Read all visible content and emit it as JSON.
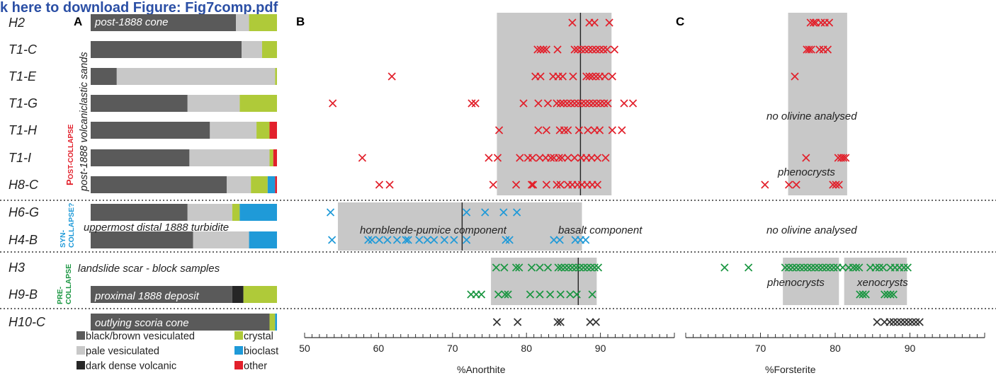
{
  "header": {
    "download_link": "k here to download Figure: Fig7comp.pdf"
  },
  "panels": {
    "a": "A",
    "b": "B",
    "c": "C"
  },
  "samples": [
    "H2",
    "T1-C",
    "T1-E",
    "T1-G",
    "T1-H",
    "T1-I",
    "H8-C",
    "H6-G",
    "H4-B",
    "H3",
    "H9-B",
    "H10-C"
  ],
  "groups": {
    "post": [
      "P",
      "OST",
      "-COLLAPSE"
    ],
    "syn": [
      "SYN-",
      "COLLAPSE?"
    ],
    "pre": [
      "PRE-",
      "COLLAPSE"
    ]
  },
  "annotations": {
    "post1888_sands": "post-1888 volcaniclastic sands",
    "post1888_cone": "post-1888 cone",
    "turbidite": "uppermost distal 1888 turbidite",
    "landslide": "landslide scar - block samples",
    "proximal": "proximal 1888 deposit",
    "outlying": "outlying scoria cone",
    "hornblende": "hornblende-pumice component",
    "basalt": "basalt component",
    "no_olivine": "no olivine analysed",
    "phenocrysts": "phenocrysts",
    "xenocrysts": "xenocrysts"
  },
  "legend": [
    {
      "label": "black/brown vesiculated",
      "color": "#5a5a5a"
    },
    {
      "label": "pale vesiculated",
      "color": "#c8c8c8"
    },
    {
      "label": "dark dense volcanic",
      "color": "#262626"
    },
    {
      "label": "crystal",
      "color": "#afca39"
    },
    {
      "label": "bioclast",
      "color": "#1f9ad8"
    },
    {
      "label": "other",
      "color": "#e2202b"
    }
  ],
  "colors": {
    "post": "#e2202b",
    "syn": "#1f9ad8",
    "pre": "#1a9641",
    "other": "#333333",
    "shade": "#c8c8c8"
  },
  "chart_data": [
    {
      "type": "bar",
      "panel": "A",
      "categories": [
        "H2",
        "T1-C",
        "T1-E",
        "T1-G",
        "T1-H",
        "T1-I",
        "H8-C",
        "H6-G",
        "H4-B",
        "H9-B",
        "H10-C"
      ],
      "series": [
        {
          "name": "black/brown vesiculated",
          "values": [
            78,
            81,
            14,
            52,
            64,
            53,
            73,
            52,
            55,
            76,
            96
          ]
        },
        {
          "name": "pale vesiculated",
          "values": [
            7,
            11,
            85,
            28,
            25,
            43,
            13,
            24,
            30,
            0,
            0
          ]
        },
        {
          "name": "dark dense volcanic",
          "values": [
            0,
            0,
            0,
            0,
            0,
            0,
            0,
            0,
            0,
            6,
            0
          ]
        },
        {
          "name": "crystal",
          "values": [
            15,
            8,
            1,
            20,
            7,
            2,
            9,
            4,
            0,
            18,
            3
          ]
        },
        {
          "name": "bioclast",
          "values": [
            0,
            0,
            0,
            0,
            0,
            0,
            4,
            20,
            15,
            0,
            1
          ]
        },
        {
          "name": "other",
          "values": [
            0,
            0,
            0,
            0,
            4,
            2,
            1,
            0,
            0,
            0,
            0
          ]
        }
      ],
      "xlim": [
        0,
        100
      ]
    },
    {
      "type": "scatter",
      "panel": "B",
      "xlabel": "%Anorthite",
      "xlim": [
        50,
        100
      ],
      "xticks": [
        50,
        60,
        70,
        80,
        90
      ],
      "shaded": [
        {
          "x0": 76,
          "x1": 91.5,
          "rows": [
            "H2",
            "H8-C"
          ],
          "median": 87.3
        },
        {
          "x0": 54.5,
          "x1": 87.5,
          "rows": [
            "H6-G",
            "H4-B"
          ],
          "median": 71.3
        },
        {
          "x0": 75.2,
          "x1": 89.5,
          "rows": [
            "H3",
            "H9-B"
          ],
          "median": 87.0
        }
      ],
      "series": [
        {
          "sample": "H2",
          "group": "post",
          "x": [
            86.2,
            88.5,
            89.2,
            91.2
          ]
        },
        {
          "sample": "T1-C",
          "group": "post",
          "x": [
            81.5,
            81.9,
            82.3,
            82.7,
            84.2,
            86.5,
            86.9,
            87.4,
            87.9,
            88.4,
            88.9,
            89.4,
            89.9,
            90.4,
            90.9,
            91.9
          ]
        },
        {
          "sample": "T1-E",
          "group": "post",
          "x": [
            61.8,
            81.2,
            81.9,
            83.6,
            84.3,
            84.9,
            86.3,
            88.1,
            88.5,
            88.9,
            89.4,
            89.9,
            90.6,
            91.6
          ]
        },
        {
          "sample": "T1-G",
          "group": "post",
          "x": [
            53.8,
            72.6,
            73.1,
            79.6,
            81.6,
            82.9,
            84.1,
            84.6,
            85.0,
            85.5,
            86.0,
            86.5,
            87.0,
            87.5,
            88.0,
            88.5,
            89.0,
            89.5,
            90.0,
            90.5,
            91.0,
            93.2,
            94.4
          ]
        },
        {
          "sample": "T1-H",
          "group": "post",
          "x": [
            76.3,
            81.6,
            82.7,
            84.5,
            85.1,
            85.6,
            87.1,
            88.3,
            89.2,
            89.9,
            91.6,
            92.9
          ]
        },
        {
          "sample": "T1-I",
          "group": "post",
          "x": [
            57.8,
            74.9,
            76.1,
            79.1,
            80.2,
            80.8,
            81.8,
            82.6,
            83.3,
            83.7,
            84.4,
            84.8,
            85.6,
            86.5,
            87.4,
            88.1,
            88.8,
            89.6,
            90.7
          ]
        },
        {
          "sample": "H8-C",
          "group": "post",
          "x": [
            60.1,
            61.5,
            75.5,
            78.6,
            80.7,
            80.9,
            82.7,
            84.1,
            84.6,
            85.6,
            86.2,
            86.9,
            87.5,
            88.2,
            88.9,
            89.6
          ]
        },
        {
          "sample": "H6-G",
          "group": "syn",
          "x": [
            53.5,
            71.9,
            74.4,
            76.9,
            78.7
          ]
        },
        {
          "sample": "H4-B",
          "group": "syn",
          "x": [
            53.7,
            58.6,
            59.1,
            60.1,
            61.2,
            62.5,
            63.7,
            64.0,
            65.5,
            66.6,
            67.5,
            68.9,
            70.2,
            71.9,
            77.2,
            77.7,
            83.7,
            84.5,
            86.6,
            87.3,
            88.0
          ]
        },
        {
          "sample": "H3",
          "group": "pre",
          "x": [
            75.9,
            77.0,
            78.6,
            79.0,
            80.7,
            81.8,
            82.9,
            84.3,
            84.7,
            85.2,
            85.7,
            86.2,
            86.7,
            87.2,
            87.7,
            88.2,
            88.7,
            89.2,
            89.7
          ]
        },
        {
          "sample": "H9-B",
          "group": "pre",
          "x": [
            72.5,
            73.2,
            73.9,
            76.2,
            77.1,
            77.5,
            80.5,
            81.8,
            83.2,
            84.6,
            85.9,
            86.8,
            88.9
          ]
        },
        {
          "sample": "H10-C",
          "group": "other",
          "x": [
            76.0,
            78.8,
            84.2,
            84.6,
            88.6,
            89.4
          ]
        }
      ]
    },
    {
      "type": "scatter",
      "panel": "C",
      "xlabel": "%Forsterite",
      "xlim": [
        60,
        100
      ],
      "xticks": [
        70,
        80,
        90
      ],
      "shaded": [
        {
          "x0": 73.7,
          "x1": 81.6,
          "rows": [
            "H2",
            "H8-C"
          ]
        },
        {
          "x0": 73.0,
          "x1": 80.5,
          "rows": [
            "H3",
            "H9-B"
          ]
        },
        {
          "x0": 81.2,
          "x1": 89.6,
          "rows": [
            "H3",
            "H9-B"
          ]
        }
      ],
      "series": [
        {
          "sample": "H2",
          "group": "post",
          "x": [
            76.7,
            77.1,
            77.4,
            78.1,
            78.6,
            79.2
          ]
        },
        {
          "sample": "T1-C",
          "group": "post",
          "x": [
            76.2,
            76.5,
            76.8,
            77.9,
            78.4,
            79.0
          ]
        },
        {
          "sample": "T1-E",
          "group": "post",
          "x": [
            74.6
          ]
        },
        {
          "sample": "T1-I",
          "group": "post",
          "x": [
            76.1,
            80.4,
            80.8,
            81.1,
            81.4
          ]
        },
        {
          "sample": "H8-C",
          "group": "post",
          "x": [
            70.6,
            73.8,
            74.8,
            79.7,
            80.1,
            80.5
          ]
        },
        {
          "sample": "H3",
          "group": "pre",
          "x": [
            65.2,
            68.4,
            73.3,
            73.8,
            74.3,
            74.8,
            75.3,
            75.8,
            76.3,
            76.8,
            77.3,
            77.8,
            78.3,
            78.8,
            79.3,
            79.8,
            80.3,
            81.0,
            81.8,
            82.4,
            82.8,
            83.2,
            84.7,
            85.4,
            85.9,
            86.4,
            87.4,
            88.0,
            88.6,
            89.2,
            89.7
          ]
        },
        {
          "sample": "H9-B",
          "group": "pre",
          "x": [
            83.3,
            83.7,
            84.1,
            86.6,
            87.0,
            87.4,
            87.8
          ]
        },
        {
          "sample": "H10-C",
          "group": "other",
          "x": [
            85.6,
            86.6,
            87.3,
            87.8,
            88.3,
            88.8,
            89.3,
            89.8,
            90.3,
            90.8,
            91.3
          ]
        }
      ]
    }
  ]
}
